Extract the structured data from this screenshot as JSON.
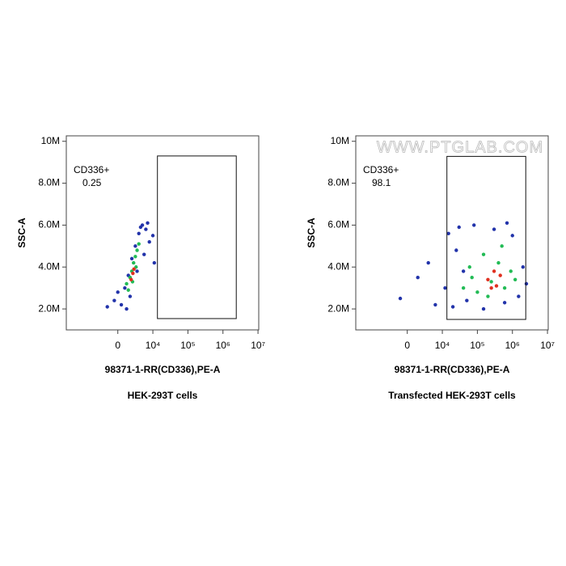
{
  "chart_data": [
    {
      "type": "scatter",
      "title": "HEK-293T cells",
      "x_label": "98371-1-RR(CD336),PE-A",
      "y_label": "SSC-A",
      "xscale": "biexponential",
      "xlim": [
        -14700,
        10500000
      ],
      "ylim": [
        1000000,
        10260000
      ],
      "xticks": [
        0,
        {
          "value": 10000,
          "label": "10⁴"
        },
        {
          "value": 100000,
          "label": "10⁵"
        },
        {
          "value": 1000000,
          "label": "10⁶"
        },
        {
          "value": 10000000,
          "label": "10⁷"
        }
      ],
      "yticks": [
        {
          "value": 2000000,
          "label": "2.0M"
        },
        {
          "value": 4000000,
          "label": "4.0M"
        },
        {
          "value": 6000000,
          "label": "6.0M"
        },
        {
          "value": 8000000,
          "label": "8.0M"
        },
        {
          "value": 10000000,
          "label": "10M"
        }
      ],
      "gate": {
        "label": "CD336+",
        "value": 0.25,
        "x": [
          13500,
          2400000
        ],
        "y": [
          1540000,
          9300000
        ]
      },
      "series": [
        {
          "color": "#2233aa",
          "x": [
            -3000,
            -1000,
            1000,
            2000,
            0,
            3000,
            4000,
            5000,
            6000,
            7000,
            8000,
            9000,
            7500,
            5500,
            3500,
            6500,
            10000,
            11000,
            2500,
            8500
          ],
          "values": [
            2100000,
            2400000,
            2200000,
            3000000,
            2800000,
            3600000,
            4400000,
            5000000,
            5600000,
            6000000,
            5800000,
            5200000,
            4600000,
            3800000,
            2600000,
            5900000,
            5500000,
            4200000,
            2000000,
            6100000
          ]
        },
        {
          "color": "#22bb55",
          "x": [
            2500,
            3500,
            4000,
            4500,
            5000,
            5500,
            6000,
            3000,
            4200,
            5200
          ],
          "values": [
            3200000,
            3500000,
            3800000,
            4200000,
            4500000,
            4800000,
            5100000,
            2900000,
            3300000,
            4000000
          ]
        },
        {
          "color": "#e03020",
          "x": [
            3800,
            4300,
            4600
          ],
          "values": [
            3400000,
            3700000,
            3900000
          ]
        }
      ]
    },
    {
      "type": "scatter",
      "title": "Transfected HEK-293T cells",
      "x_label": "98371-1-RR(CD336),PE-A",
      "y_label": "SSC-A",
      "watermark": "WWW.PTGLAB.COM",
      "xscale": "biexponential",
      "xlim": [
        -14700,
        10500000
      ],
      "ylim": [
        1000000,
        10260000
      ],
      "xticks": [
        0,
        {
          "value": 10000,
          "label": "10⁴"
        },
        {
          "value": 100000,
          "label": "10⁵"
        },
        {
          "value": 1000000,
          "label": "10⁶"
        },
        {
          "value": 10000000,
          "label": "10⁷"
        }
      ],
      "yticks": [
        {
          "value": 2000000,
          "label": "2.0M"
        },
        {
          "value": 4000000,
          "label": "4.0M"
        },
        {
          "value": 6000000,
          "label": "6.0M"
        },
        {
          "value": 8000000,
          "label": "8.0M"
        },
        {
          "value": 10000000,
          "label": "10M"
        }
      ],
      "gate": {
        "label": "CD336+",
        "value": 98.1,
        "x": [
          13500,
          2400000
        ],
        "y": [
          1500000,
          9280000
        ]
      },
      "series": [
        {
          "color": "#2233aa",
          "x": [
            3000,
            -2000,
            6000,
            8000,
            15000,
            20000,
            30000,
            50000,
            80000,
            150000,
            300000,
            600000,
            1000000,
            2000000,
            1500000,
            12000,
            25000,
            40000,
            700000,
            2500000
          ],
          "values": [
            3500000,
            2500000,
            4200000,
            2200000,
            5600000,
            2100000,
            5900000,
            2400000,
            6000000,
            2000000,
            5800000,
            2300000,
            5500000,
            4000000,
            2600000,
            3000000,
            4800000,
            3800000,
            6100000,
            3200000
          ]
        },
        {
          "color": "#22bb55",
          "x": [
            40000,
            60000,
            100000,
            150000,
            250000,
            400000,
            600000,
            900000,
            200000,
            500000,
            70000,
            1200000
          ],
          "values": [
            3000000,
            4000000,
            2800000,
            4600000,
            3300000,
            4200000,
            3000000,
            3800000,
            2600000,
            5000000,
            3500000,
            3400000
          ]
        },
        {
          "color": "#e03020",
          "x": [
            200000,
            300000,
            350000,
            450000,
            250000
          ],
          "values": [
            3400000,
            3800000,
            3100000,
            3600000,
            3000000
          ]
        }
      ]
    }
  ]
}
